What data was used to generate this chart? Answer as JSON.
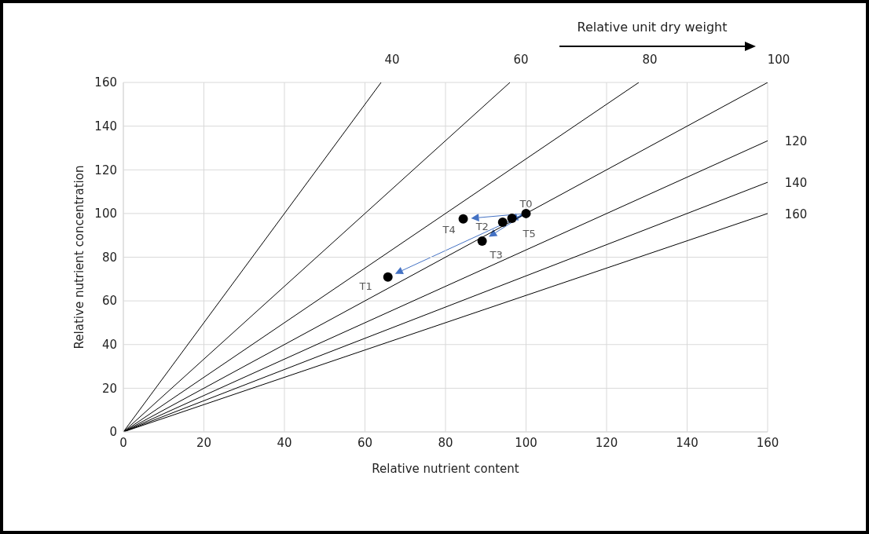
{
  "chart_data": {
    "type": "line",
    "xlabel": "Relative nutrient content",
    "ylabel": "Relative nutrient concentration",
    "annotations": [
      "Relative unit dry weight"
    ],
    "xlim": [
      0,
      160
    ],
    "xticks": [
      0,
      20,
      40,
      60,
      80,
      100,
      120,
      140,
      160
    ],
    "ylim": [
      0,
      160
    ],
    "yticks": [
      0,
      20,
      40,
      60,
      80,
      100,
      120,
      140,
      160
    ],
    "grid": true,
    "legend": false,
    "series": [
      {
        "name": "40",
        "color": "#000000",
        "x": [
          0,
          64
        ],
        "values": [
          0,
          160
        ]
      },
      {
        "name": "60",
        "color": "#000000",
        "x": [
          0,
          96
        ],
        "values": [
          0,
          160
        ]
      },
      {
        "name": "80",
        "color": "#000000",
        "x": [
          0,
          128
        ],
        "values": [
          0,
          160
        ]
      },
      {
        "name": "100",
        "color": "#000000",
        "x": [
          0,
          160
        ],
        "values": [
          0,
          160
        ]
      },
      {
        "name": "120",
        "color": "#000000",
        "x": [
          0,
          160
        ],
        "values": [
          0,
          133.3
        ]
      },
      {
        "name": "140",
        "color": "#000000",
        "x": [
          0,
          160
        ],
        "values": [
          0,
          114.3
        ]
      },
      {
        "name": "160",
        "color": "#000000",
        "x": [
          0,
          160
        ],
        "values": [
          0,
          100
        ]
      },
      {
        "type": "scatter",
        "color": "#000000",
        "marker": "circle",
        "x": [
          100,
          65.7,
          94.2,
          89.1,
          84.4,
          96.5
        ],
        "values": [
          100,
          70.9,
          96,
          87.4,
          97.5,
          97.8
        ],
        "value_labels": [
          "T0",
          "T1",
          "T2",
          "T3",
          "T4",
          "T5"
        ]
      }
    ]
  }
}
